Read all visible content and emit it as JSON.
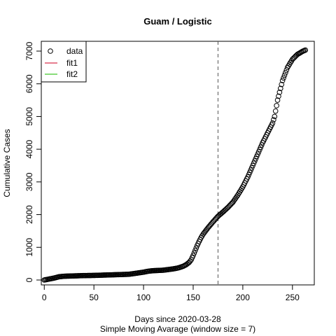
{
  "chart_data": {
    "type": "scatter",
    "title": "Guam / Logistic",
    "xlabel": "Days since 2020-03-28",
    "xlabel2": "Simple Moving Avarage (window size = 7)",
    "ylabel": "Cumulative Cases",
    "xlim": [
      -3,
      272
    ],
    "ylim": [
      -150,
      7300
    ],
    "xticks": [
      0,
      50,
      100,
      150,
      200,
      250
    ],
    "yticks": [
      0,
      1000,
      2000,
      3000,
      4000,
      5000,
      6000,
      7000
    ],
    "vline": 175,
    "legend": {
      "position": "top-left",
      "items": [
        {
          "label": "data",
          "symbol": "circle",
          "color": "#000000"
        },
        {
          "label": "fit1",
          "symbol": "line",
          "color": "#DF536B"
        },
        {
          "label": "fit2",
          "symbol": "line",
          "color": "#61D04F"
        }
      ]
    },
    "series": [
      {
        "name": "data",
        "anchors": [
          [
            0,
            0
          ],
          [
            5,
            30
          ],
          [
            10,
            60
          ],
          [
            15,
            100
          ],
          [
            20,
            115
          ],
          [
            30,
            125
          ],
          [
            40,
            135
          ],
          [
            50,
            140
          ],
          [
            60,
            150
          ],
          [
            70,
            160
          ],
          [
            80,
            170
          ],
          [
            85,
            175
          ],
          [
            90,
            195
          ],
          [
            100,
            240
          ],
          [
            105,
            270
          ],
          [
            110,
            285
          ],
          [
            120,
            300
          ],
          [
            130,
            340
          ],
          [
            135,
            370
          ],
          [
            140,
            420
          ],
          [
            143,
            470
          ],
          [
            146,
            540
          ],
          [
            148,
            620
          ],
          [
            150,
            750
          ],
          [
            152,
            900
          ],
          [
            154,
            1050
          ],
          [
            156,
            1180
          ],
          [
            158,
            1300
          ],
          [
            160,
            1400
          ],
          [
            165,
            1600
          ],
          [
            170,
            1780
          ],
          [
            175,
            1950
          ],
          [
            180,
            2080
          ],
          [
            185,
            2220
          ],
          [
            190,
            2380
          ],
          [
            195,
            2600
          ],
          [
            200,
            2850
          ],
          [
            205,
            3150
          ],
          [
            210,
            3500
          ],
          [
            215,
            3850
          ],
          [
            220,
            4200
          ],
          [
            225,
            4500
          ],
          [
            230,
            4800
          ],
          [
            232,
            5000
          ],
          [
            235,
            5500
          ],
          [
            240,
            6100
          ],
          [
            245,
            6500
          ],
          [
            250,
            6750
          ],
          [
            255,
            6900
          ],
          [
            260,
            6990
          ],
          [
            263,
            7030
          ]
        ]
      }
    ]
  }
}
